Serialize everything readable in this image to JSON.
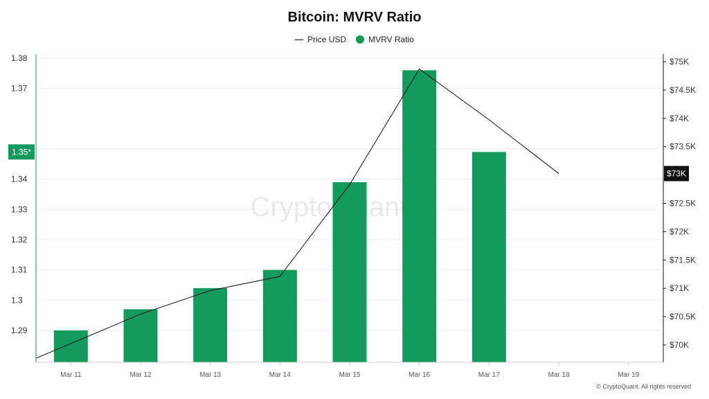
{
  "chart_data": {
    "type": "bar",
    "title": "Bitcoin: MVRV Ratio",
    "categories": [
      "Mar 11",
      "Mar 12",
      "Mar 13",
      "Mar 14",
      "Mar 15",
      "Mar 16",
      "Mar 17",
      "Mar 18",
      "Mar 19"
    ],
    "series": [
      {
        "name": "MVRV Ratio",
        "type": "bar",
        "axis": "left",
        "color": "#159a5e",
        "values": [
          1.29,
          1.297,
          1.304,
          1.31,
          1.339,
          1.376,
          1.349,
          null,
          null
        ]
      },
      {
        "name": "Price USD",
        "type": "line",
        "axis": "right",
        "color": "#111111",
        "values": [
          70025,
          70545,
          70960,
          71210,
          72830,
          74870,
          73975,
          73025,
          null
        ]
      }
    ],
    "y_left": {
      "ticks": [
        "1.29",
        "1.3",
        "1.31",
        "1.32",
        "1.33",
        "1.34",
        "1.35",
        "1.37",
        "1.38"
      ],
      "tick_values": [
        1.29,
        1.3,
        1.31,
        1.32,
        1.33,
        1.34,
        1.35,
        1.37,
        1.38
      ],
      "current_label": "1.35*",
      "current_value": 1.349
    },
    "y_right": {
      "ticks": [
        "$70K",
        "$70.5K",
        "$71K",
        "$71.5K",
        "$72K",
        "$72.5K",
        "$73K",
        "$73.5K",
        "$74K",
        "$74.5K",
        "$75K"
      ],
      "tick_values": [
        70000,
        70500,
        71000,
        71500,
        72000,
        72500,
        73000,
        73500,
        74000,
        74500,
        75000
      ],
      "current_label": "$73K",
      "current_value": 73025
    },
    "legend": [
      {
        "label": "Price USD",
        "marker": "line"
      },
      {
        "label": "MVRV Ratio",
        "marker": "dot"
      }
    ],
    "watermark": "CryptoQuant",
    "legend_position": "top-center",
    "grid": true
  },
  "footer": {
    "copyright": "© CryptoQuant. All rights reserved"
  }
}
